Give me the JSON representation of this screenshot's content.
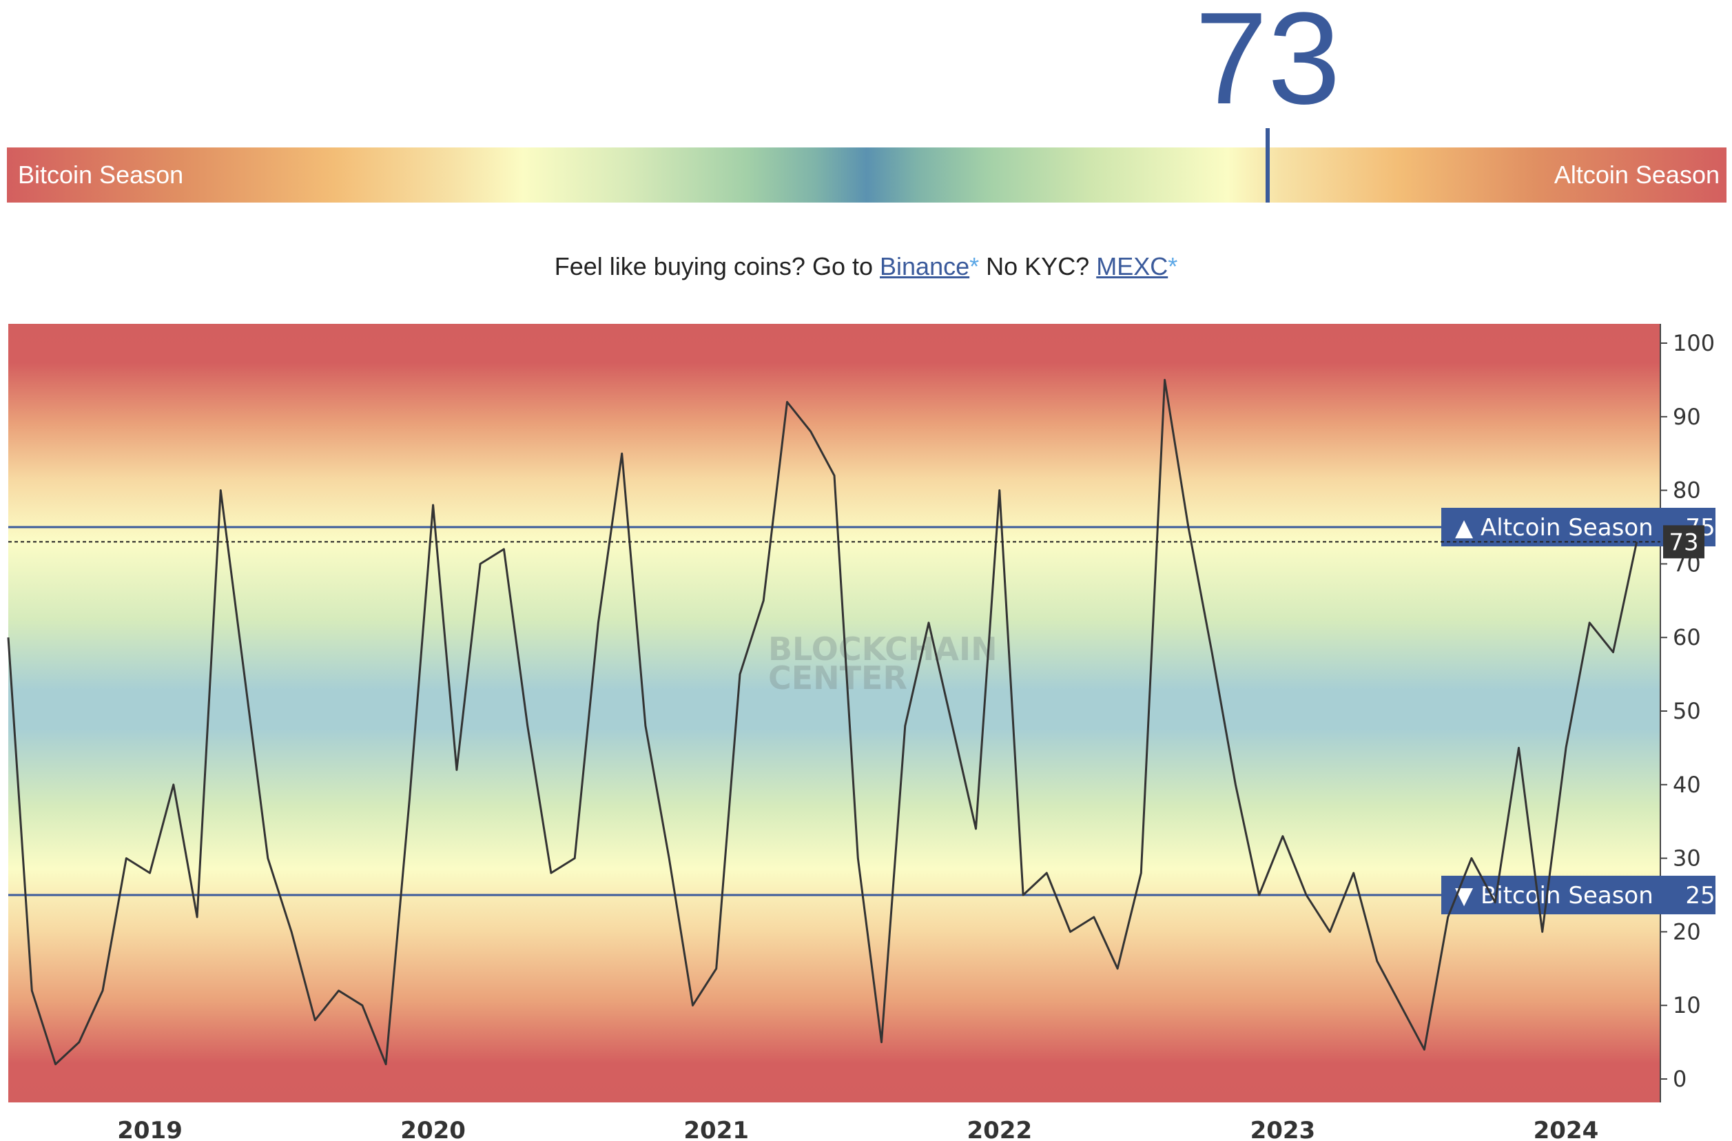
{
  "index_value": "73",
  "gauge": {
    "left_label": "Bitcoin Season",
    "right_label": "Altcoin Season",
    "marker_value": 73
  },
  "promo": {
    "text1": "Feel like buying coins? Go to ",
    "link1": "Binance",
    "asterisk1": "*",
    "text2": " No KYC? ",
    "link2": "MEXC",
    "asterisk2": "*"
  },
  "watermark": {
    "line1": "BLOCKCHAIN",
    "line2": "CENTER"
  },
  "colors": {
    "accent": "#3a5a9b",
    "line": "#333333",
    "value_tag": "#333333"
  },
  "chart_data": {
    "type": "line",
    "title": "",
    "xlabel": "",
    "ylabel": "",
    "ylim": [
      0,
      100
    ],
    "yticks": [
      "0",
      "10",
      "20",
      "30",
      "40",
      "50",
      "60",
      "70",
      "80",
      "90",
      "100"
    ],
    "x_tick_labels": [
      "2019",
      "2020",
      "2021",
      "2022",
      "2023",
      "2024"
    ],
    "x_start": "2018-07",
    "x_end": "2024-05",
    "background": "gradient: red at 0 and 100, yellow near 25 and 75, blue at 50",
    "thresholds": [
      {
        "label": "▲ Altcoin Season",
        "value": 75,
        "value_label": "75"
      },
      {
        "label": "▼ Bitcoin Season",
        "value": 25,
        "value_label": "25"
      }
    ],
    "current": {
      "value": 73,
      "label": "73"
    },
    "series": [
      {
        "x": [
          "2018-07",
          "2018-08",
          "2018-09",
          "2018-10",
          "2018-11",
          "2018-12",
          "2019-01",
          "2019-02",
          "2019-03",
          "2019-04",
          "2019-05",
          "2019-06",
          "2019-07",
          "2019-08",
          "2019-09",
          "2019-10",
          "2019-11",
          "2019-12",
          "2020-01",
          "2020-02",
          "2020-03",
          "2020-04",
          "2020-05",
          "2020-06",
          "2020-07",
          "2020-08",
          "2020-09",
          "2020-10",
          "2020-11",
          "2020-12",
          "2021-01",
          "2021-02",
          "2021-03",
          "2021-04",
          "2021-05",
          "2021-06",
          "2021-07",
          "2021-08",
          "2021-09",
          "2021-10",
          "2021-11",
          "2021-12",
          "2022-01",
          "2022-02",
          "2022-03",
          "2022-04",
          "2022-05",
          "2022-06",
          "2022-07",
          "2022-08",
          "2022-09",
          "2022-10",
          "2022-11",
          "2022-12",
          "2023-01",
          "2023-02",
          "2023-03",
          "2023-04",
          "2023-05",
          "2023-06",
          "2023-07",
          "2023-08",
          "2023-09",
          "2023-10",
          "2023-11",
          "2023-12",
          "2024-01",
          "2024-02",
          "2024-03",
          "2024-04"
        ],
        "y": [
          60,
          12,
          2,
          5,
          12,
          30,
          28,
          40,
          22,
          80,
          55,
          30,
          20,
          8,
          12,
          10,
          2,
          38,
          78,
          42,
          70,
          72,
          48,
          28,
          30,
          62,
          85,
          48,
          30,
          10,
          15,
          55,
          65,
          92,
          88,
          82,
          30,
          5,
          48,
          62,
          48,
          34,
          80,
          25,
          28,
          20,
          22,
          15,
          28,
          95,
          75,
          58,
          40,
          25,
          33,
          25,
          20,
          28,
          16,
          10,
          4,
          22,
          30,
          24,
          45,
          20,
          45,
          62,
          58,
          73
        ]
      }
    ]
  }
}
